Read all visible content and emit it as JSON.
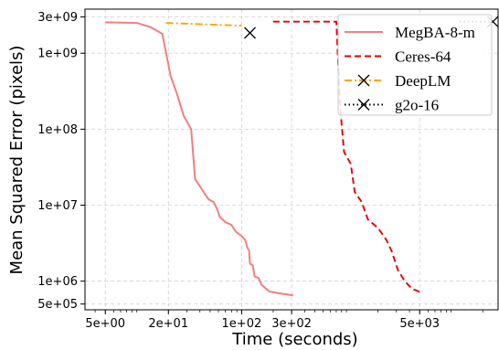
{
  "chart_data": {
    "type": "line",
    "title": "",
    "xlabel": "Time (seconds)",
    "ylabel": "Mean Squared Error (pixels)",
    "xscale": "log",
    "yscale": "log",
    "xlim": [
      3.2,
      28000
    ],
    "ylim": [
      420000,
      3800000000
    ],
    "grid": true,
    "legend_position": "top-right",
    "x_ticks": [
      {
        "value": 5,
        "label": "5e+00"
      },
      {
        "value": 20,
        "label": "2e+01"
      },
      {
        "value": 100,
        "label": "1e+02"
      },
      {
        "value": 300,
        "label": "3e+02"
      },
      {
        "value": 5000,
        "label": "5e+03"
      }
    ],
    "y_ticks": [
      {
        "value": 500000,
        "label": "5e+05"
      },
      {
        "value": 1000000,
        "label": "1e+06"
      },
      {
        "value": 10000000,
        "label": "1e+07"
      },
      {
        "value": 100000000,
        "label": "1e+08"
      },
      {
        "value": 1000000000,
        "label": "1e+09"
      },
      {
        "value": 3000000000,
        "label": "3e+09"
      }
    ],
    "series": [
      {
        "name": "MegBA-8-m",
        "color": "#f08080",
        "dash": "solid",
        "marker": "none",
        "points": [
          [
            5,
            2550000000.0
          ],
          [
            10,
            2500000000.0
          ],
          [
            13.5,
            2200000000.0
          ],
          [
            17.5,
            1800000000.0
          ],
          [
            21,
            500000000.0
          ],
          [
            24,
            300000000.0
          ],
          [
            28,
            150000000.0
          ],
          [
            33,
            100000000.0
          ],
          [
            36,
            22000000.0
          ],
          [
            42,
            16000000.0
          ],
          [
            48,
            12000000.0
          ],
          [
            54,
            11000000.0
          ],
          [
            58,
            9000000.0
          ],
          [
            62,
            7000000.0
          ],
          [
            70,
            6000000.0
          ],
          [
            80,
            5500000.0
          ],
          [
            88,
            4500000.0
          ],
          [
            98,
            4000000.0
          ],
          [
            108,
            3500000.0
          ],
          [
            113,
            2800000.0
          ],
          [
            118,
            2500000.0
          ],
          [
            120,
            1700000.0
          ],
          [
            128,
            1600000.0
          ],
          [
            133,
            1150000.0
          ],
          [
            145,
            1100000.0
          ],
          [
            155,
            900000.0
          ],
          [
            170,
            800000.0
          ],
          [
            185,
            730000.0
          ],
          [
            220,
            700000.0
          ],
          [
            310,
            650000.0
          ]
        ]
      },
      {
        "name": "Ceres-64",
        "color": "#e60000",
        "dash": "dashed",
        "marker": "none",
        "points": [
          [
            200,
            2600000000.0
          ],
          [
            800,
            2600000000.0
          ],
          [
            870,
            200000000.0
          ],
          [
            950,
            50000000.0
          ],
          [
            1100,
            35000000.0
          ],
          [
            1200,
            15000000.0
          ],
          [
            1400,
            11000000.0
          ],
          [
            1600,
            6500000.0
          ],
          [
            2000,
            5000000.0
          ],
          [
            2400,
            3500000.0
          ],
          [
            2700,
            2500000.0
          ],
          [
            3100,
            1400000.0
          ],
          [
            3600,
            1000000.0
          ],
          [
            4200,
            800000.0
          ],
          [
            5000,
            720000.0
          ]
        ]
      },
      {
        "name": "DeepLM",
        "color": "#ffa500",
        "dash": "dashdot",
        "marker": "x",
        "points": [
          [
            19,
            2500000000.0
          ],
          [
            100,
            2300000000.0
          ]
        ],
        "marker_points": [
          [
            120,
            1850000000.0
          ]
        ]
      },
      {
        "name": "g2o-16",
        "color": "#000000",
        "dash": "dotted",
        "marker": "x",
        "points": [
          [
            12000,
            2600000000.0
          ],
          [
            26000,
            2600000000.0
          ]
        ],
        "marker_points": [
          [
            25000,
            2600000000.0
          ]
        ]
      }
    ]
  }
}
